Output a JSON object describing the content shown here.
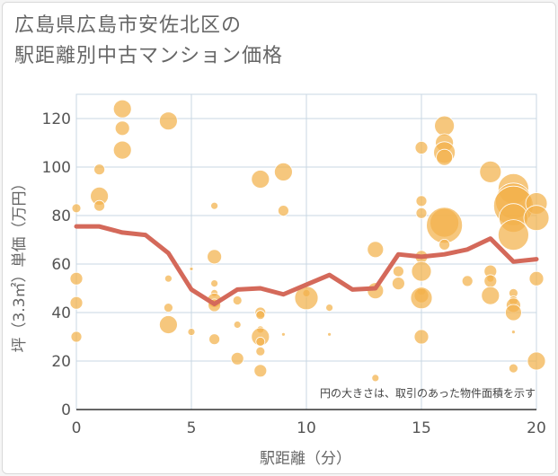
{
  "header": {
    "title_line1": "広島県広島市安佐北区の",
    "title_line2": "駅距離別中古マンション価格"
  },
  "chart_data": {
    "type": "scatter",
    "xlabel": "駅距離（分）",
    "ylabel": "坪（3.3㎡）単価（万円）",
    "xlim": [
      0,
      20
    ],
    "ylim": [
      0,
      130
    ],
    "xticks": [
      0,
      5,
      10,
      15,
      20
    ],
    "yticks": [
      0,
      20,
      40,
      60,
      80,
      100,
      120
    ],
    "grid": true,
    "note": "円の大きさは、取引のあった物件面積を示す",
    "colors": {
      "bubble": "#f2b24b",
      "line": "#d4695a",
      "grid": "#c9d7e3"
    },
    "average_line": {
      "x": [
        0,
        1,
        2,
        3,
        4,
        5,
        6,
        7,
        8,
        9,
        10,
        11,
        12,
        13,
        14,
        15,
        16,
        17,
        18,
        19,
        20
      ],
      "y": [
        75.5,
        75.5,
        73,
        72,
        64.5,
        49.5,
        43.5,
        49.5,
        50,
        47.5,
        51.5,
        55.5,
        49.5,
        50,
        64,
        63,
        64,
        66,
        70.5,
        61,
        62
      ]
    },
    "points": [
      {
        "x": 0,
        "y": 83,
        "s": 5
      },
      {
        "x": 0,
        "y": 54,
        "s": 7
      },
      {
        "x": 0,
        "y": 44,
        "s": 7
      },
      {
        "x": 0,
        "y": 30,
        "s": 6
      },
      {
        "x": 1,
        "y": 99,
        "s": 6
      },
      {
        "x": 1,
        "y": 88,
        "s": 10
      },
      {
        "x": 1,
        "y": 84,
        "s": 6
      },
      {
        "x": 2,
        "y": 124,
        "s": 10
      },
      {
        "x": 2,
        "y": 116,
        "s": 8
      },
      {
        "x": 2,
        "y": 107,
        "s": 10
      },
      {
        "x": 4,
        "y": 119,
        "s": 10
      },
      {
        "x": 4,
        "y": 54,
        "s": 4
      },
      {
        "x": 4,
        "y": 42,
        "s": 5
      },
      {
        "x": 4,
        "y": 35,
        "s": 10
      },
      {
        "x": 5,
        "y": 58,
        "s": 2
      },
      {
        "x": 5,
        "y": 32,
        "s": 4
      },
      {
        "x": 6,
        "y": 84,
        "s": 4
      },
      {
        "x": 6,
        "y": 63,
        "s": 8
      },
      {
        "x": 6,
        "y": 52,
        "s": 4
      },
      {
        "x": 6,
        "y": 48,
        "s": 4
      },
      {
        "x": 6,
        "y": 45,
        "s": 8
      },
      {
        "x": 6,
        "y": 43,
        "s": 7
      },
      {
        "x": 6,
        "y": 29,
        "s": 6
      },
      {
        "x": 7,
        "y": 45,
        "s": 5
      },
      {
        "x": 7,
        "y": 35,
        "s": 4
      },
      {
        "x": 7,
        "y": 21,
        "s": 7
      },
      {
        "x": 8,
        "y": 95,
        "s": 10
      },
      {
        "x": 8,
        "y": 40,
        "s": 6
      },
      {
        "x": 8,
        "y": 39,
        "s": 5
      },
      {
        "x": 8,
        "y": 33,
        "s": 4
      },
      {
        "x": 8,
        "y": 30,
        "s": 10
      },
      {
        "x": 8,
        "y": 28,
        "s": 5
      },
      {
        "x": 8,
        "y": 24,
        "s": 5
      },
      {
        "x": 8,
        "y": 16,
        "s": 7
      },
      {
        "x": 9,
        "y": 98,
        "s": 10
      },
      {
        "x": 9,
        "y": 82,
        "s": 6
      },
      {
        "x": 9,
        "y": 31,
        "s": 2
      },
      {
        "x": 10,
        "y": 48,
        "s": 4
      },
      {
        "x": 10,
        "y": 46,
        "s": 13
      },
      {
        "x": 11,
        "y": 42,
        "s": 4
      },
      {
        "x": 11,
        "y": 31,
        "s": 2
      },
      {
        "x": 13,
        "y": 66,
        "s": 9
      },
      {
        "x": 13,
        "y": 49,
        "s": 9
      },
      {
        "x": 13,
        "y": 13,
        "s": 4
      },
      {
        "x": 14,
        "y": 57,
        "s": 6
      },
      {
        "x": 14,
        "y": 52,
        "s": 7
      },
      {
        "x": 15,
        "y": 108,
        "s": 7
      },
      {
        "x": 15,
        "y": 86,
        "s": 6
      },
      {
        "x": 15,
        "y": 81,
        "s": 6
      },
      {
        "x": 15,
        "y": 63,
        "s": 7
      },
      {
        "x": 15,
        "y": 57,
        "s": 11
      },
      {
        "x": 15,
        "y": 49,
        "s": 5
      },
      {
        "x": 15,
        "y": 47,
        "s": 8
      },
      {
        "x": 15,
        "y": 46,
        "s": 12
      },
      {
        "x": 15,
        "y": 30,
        "s": 8
      },
      {
        "x": 16,
        "y": 117,
        "s": 11
      },
      {
        "x": 16,
        "y": 110,
        "s": 10
      },
      {
        "x": 16,
        "y": 106,
        "s": 12
      },
      {
        "x": 16,
        "y": 104,
        "s": 9
      },
      {
        "x": 16,
        "y": 77,
        "s": 16
      },
      {
        "x": 16,
        "y": 76,
        "s": 20
      },
      {
        "x": 16,
        "y": 68,
        "s": 6
      },
      {
        "x": 17,
        "y": 53,
        "s": 6
      },
      {
        "x": 18,
        "y": 98,
        "s": 12
      },
      {
        "x": 18,
        "y": 57,
        "s": 7
      },
      {
        "x": 18,
        "y": 54,
        "s": 4
      },
      {
        "x": 18,
        "y": 53,
        "s": 7
      },
      {
        "x": 18,
        "y": 47,
        "s": 10
      },
      {
        "x": 19,
        "y": 91,
        "s": 17
      },
      {
        "x": 19,
        "y": 86,
        "s": 20
      },
      {
        "x": 19,
        "y": 84,
        "s": 22
      },
      {
        "x": 19,
        "y": 79,
        "s": 16
      },
      {
        "x": 19,
        "y": 72,
        "s": 17
      },
      {
        "x": 19,
        "y": 48,
        "s": 5
      },
      {
        "x": 19,
        "y": 45,
        "s": 5
      },
      {
        "x": 19,
        "y": 43,
        "s": 8
      },
      {
        "x": 19,
        "y": 40,
        "s": 9
      },
      {
        "x": 19,
        "y": 32,
        "s": 2
      },
      {
        "x": 19,
        "y": 17,
        "s": 5
      },
      {
        "x": 20,
        "y": 85,
        "s": 12
      },
      {
        "x": 20,
        "y": 79,
        "s": 14
      },
      {
        "x": 20,
        "y": 54,
        "s": 8
      },
      {
        "x": 20,
        "y": 20,
        "s": 10
      }
    ]
  }
}
